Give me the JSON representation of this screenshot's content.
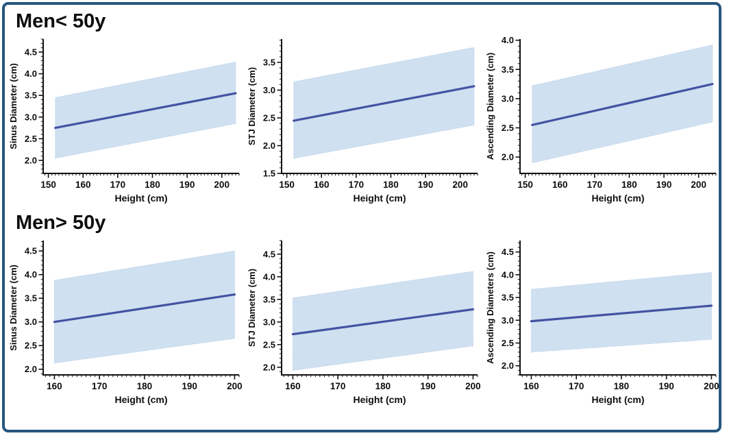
{
  "frame": {
    "border_color": "#26567e",
    "background": "#ffffff"
  },
  "sections": [
    {
      "title": "Men< 50y"
    },
    {
      "title": "Men> 50y"
    }
  ],
  "style": {
    "line_color": "#4353a2",
    "band_color": "#cfe0f1",
    "band_edge_color": "#9fbedf",
    "axis_color": "#111111",
    "text_color": "#0d0d0d"
  },
  "chart_data": [
    {
      "type": "line",
      "section": "Men< 50y",
      "ylabel": "Sinus Diameter (cm)",
      "xlabel": "Height (cm)",
      "x": [
        152,
        204
      ],
      "line": [
        2.75,
        3.55
      ],
      "band_lower": [
        2.05,
        2.85
      ],
      "band_upper": [
        3.45,
        4.27
      ],
      "xticks": [
        150,
        160,
        170,
        180,
        190,
        200
      ],
      "xticklabels": [
        "150",
        "160",
        "170",
        "180",
        "190",
        "200"
      ],
      "yticks": [
        2.0,
        2.5,
        3.0,
        3.5,
        4.0,
        4.5
      ],
      "yticklabels": [
        "2.0",
        "2.5",
        "3.0",
        "3.5",
        "4.0",
        "4.5"
      ],
      "xlim": [
        148.5,
        205
      ],
      "ylim": [
        1.7,
        4.8
      ],
      "grid": false,
      "legend": "none"
    },
    {
      "type": "line",
      "section": "Men< 50y",
      "ylabel": "STJ Diameter (cm)",
      "xlabel": "Height (cm)",
      "x": [
        152,
        204
      ],
      "line": [
        2.45,
        3.07
      ],
      "band_lower": [
        1.77,
        2.37
      ],
      "band_upper": [
        3.15,
        3.77
      ],
      "xticks": [
        150,
        160,
        170,
        180,
        190,
        200
      ],
      "xticklabels": [
        "150",
        "160",
        "170",
        "180",
        "190",
        "200"
      ],
      "yticks": [
        1.5,
        2.0,
        2.5,
        3.0,
        3.5
      ],
      "yticklabels": [
        "1.5",
        "2.0",
        "2.5",
        "3.0",
        "3.5"
      ],
      "xlim": [
        148.5,
        205
      ],
      "ylim": [
        1.5,
        3.92
      ],
      "grid": false,
      "legend": "none"
    },
    {
      "type": "line",
      "section": "Men< 50y",
      "ylabel": "Ascending Diameter (cm)",
      "xlabel": "Height (cm)",
      "x": [
        152,
        204
      ],
      "line": [
        2.55,
        3.25
      ],
      "band_lower": [
        1.9,
        2.6
      ],
      "band_upper": [
        3.22,
        3.92
      ],
      "xticks": [
        150,
        160,
        170,
        180,
        190,
        200
      ],
      "xticklabels": [
        "150",
        "160",
        "170",
        "180",
        "190",
        "200"
      ],
      "yticks": [
        2.0,
        2.5,
        3.0,
        3.5,
        4.0
      ],
      "yticklabels": [
        "2.0",
        "2.5",
        "3.0",
        "3.5",
        "4.0"
      ],
      "xlim": [
        148.5,
        205
      ],
      "ylim": [
        1.72,
        4.02
      ],
      "grid": false,
      "legend": "none"
    },
    {
      "type": "line",
      "section": "Men> 50y",
      "ylabel": "Sinus Diameter (cm)",
      "xlabel": "Height (cm)",
      "x": [
        160,
        200
      ],
      "line": [
        3.0,
        3.58
      ],
      "band_lower": [
        2.13,
        2.65
      ],
      "band_upper": [
        3.88,
        4.5
      ],
      "xticks": [
        160,
        170,
        180,
        190,
        200
      ],
      "xticklabels": [
        "160",
        "170",
        "180",
        "190",
        "200"
      ],
      "yticks": [
        2.0,
        2.5,
        3.0,
        3.5,
        4.0,
        4.5
      ],
      "yticklabels": [
        "2.0",
        "2.5",
        "3.0",
        "3.5",
        "4.0",
        "4.5"
      ],
      "xlim": [
        157.5,
        201
      ],
      "ylim": [
        1.88,
        4.72
      ],
      "grid": false,
      "legend": "none"
    },
    {
      "type": "line",
      "section": "Men> 50y",
      "ylabel": "STJ Diameter (cm)",
      "xlabel": "Height (cm)",
      "x": [
        160,
        200
      ],
      "line": [
        2.73,
        3.28
      ],
      "band_lower": [
        1.93,
        2.47
      ],
      "band_upper": [
        3.53,
        4.12
      ],
      "xticks": [
        160,
        170,
        180,
        190,
        200
      ],
      "xticklabels": [
        "160",
        "170",
        "180",
        "190",
        "200"
      ],
      "yticks": [
        2.0,
        2.5,
        3.0,
        3.5,
        4.0,
        4.5
      ],
      "yticklabels": [
        "2.0",
        "2.5",
        "3.0",
        "3.5",
        "4.0",
        "4.5"
      ],
      "xlim": [
        157.5,
        201
      ],
      "ylim": [
        1.83,
        4.8
      ],
      "grid": false,
      "legend": "none"
    },
    {
      "type": "line",
      "section": "Men> 50y",
      "ylabel": "Ascending Diameters (cm)",
      "xlabel": "Height (cm)",
      "x": [
        160,
        200
      ],
      "line": [
        2.98,
        3.32
      ],
      "band_lower": [
        2.3,
        2.58
      ],
      "band_upper": [
        3.68,
        4.05
      ],
      "xticks": [
        160,
        170,
        180,
        190,
        200
      ],
      "xticklabels": [
        "160",
        "170",
        "180",
        "190",
        "200"
      ],
      "yticks": [
        2.0,
        2.5,
        3.0,
        3.5,
        4.0,
        4.5
      ],
      "yticklabels": [
        "2.0",
        "2.5",
        "3.0",
        "3.5",
        "4.0",
        "4.5"
      ],
      "xlim": [
        157.5,
        201
      ],
      "ylim": [
        1.8,
        4.75
      ],
      "grid": false,
      "legend": "none"
    }
  ]
}
